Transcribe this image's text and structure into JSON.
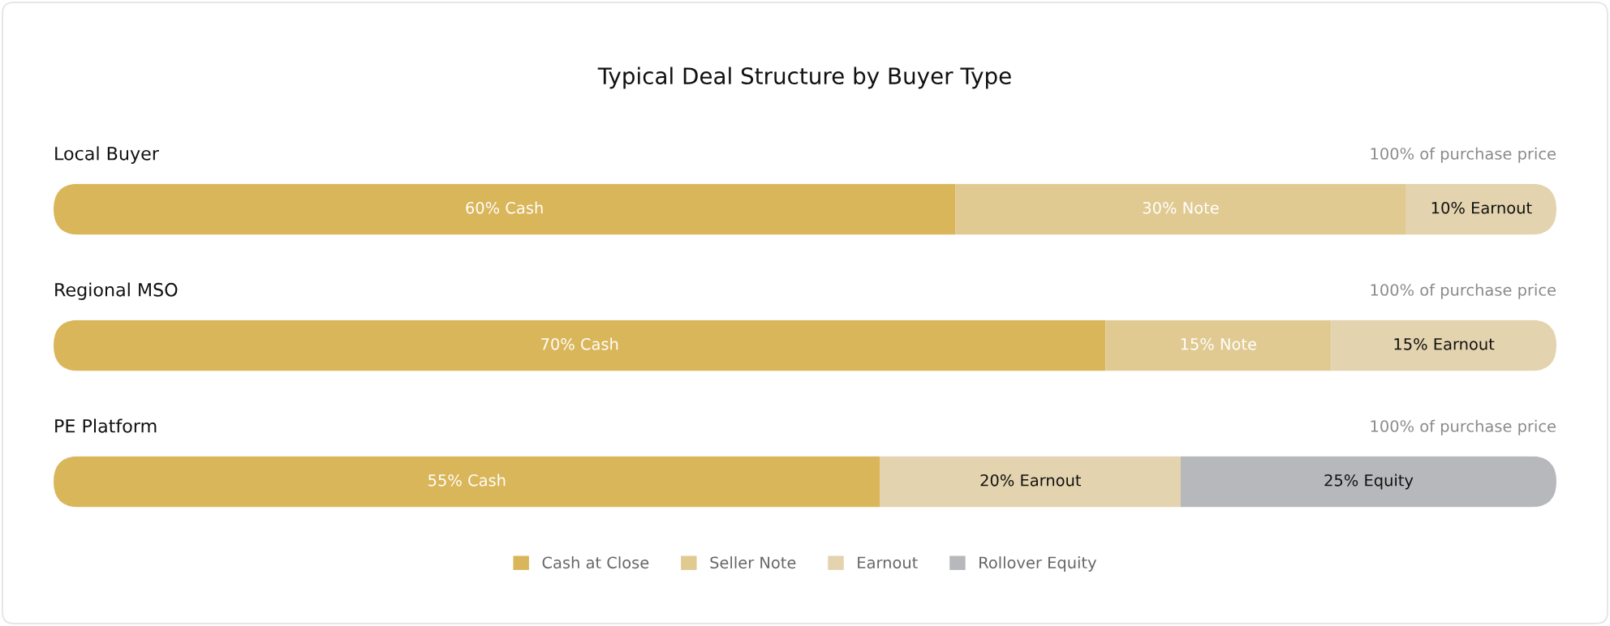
{
  "chart_data": {
    "type": "bar",
    "orientation": "horizontal",
    "stacked": true,
    "title": "Typical Deal Structure by Buyer Type",
    "categories": [
      "Local Buyer",
      "Regional MSO",
      "PE Platform"
    ],
    "series": [
      {
        "name": "Cash at Close",
        "color": "#dab65a",
        "values": [
          60,
          70,
          55
        ],
        "value_labels": [
          "60% Cash",
          "70% Cash",
          "55% Cash"
        ]
      },
      {
        "name": "Seller Note",
        "color": "#e0ca92",
        "values": [
          30,
          15,
          null
        ],
        "value_labels": [
          "30% Note",
          "15% Note",
          null
        ]
      },
      {
        "name": "Earnout",
        "color": "#e3d3ae",
        "values": [
          10,
          15,
          20
        ],
        "value_labels": [
          "10% Earnout",
          "15% Earnout",
          "20% Earnout"
        ]
      },
      {
        "name": "Rollover Equity",
        "color": "#b7b8bb",
        "values": [
          null,
          null,
          25
        ],
        "value_labels": [
          null,
          null,
          "25% Equity"
        ]
      }
    ],
    "totals": [
      "100% of purchase price",
      "100% of purchase price",
      "100% of purchase price"
    ],
    "tick_labels": "y",
    "legend": "bottom"
  }
}
